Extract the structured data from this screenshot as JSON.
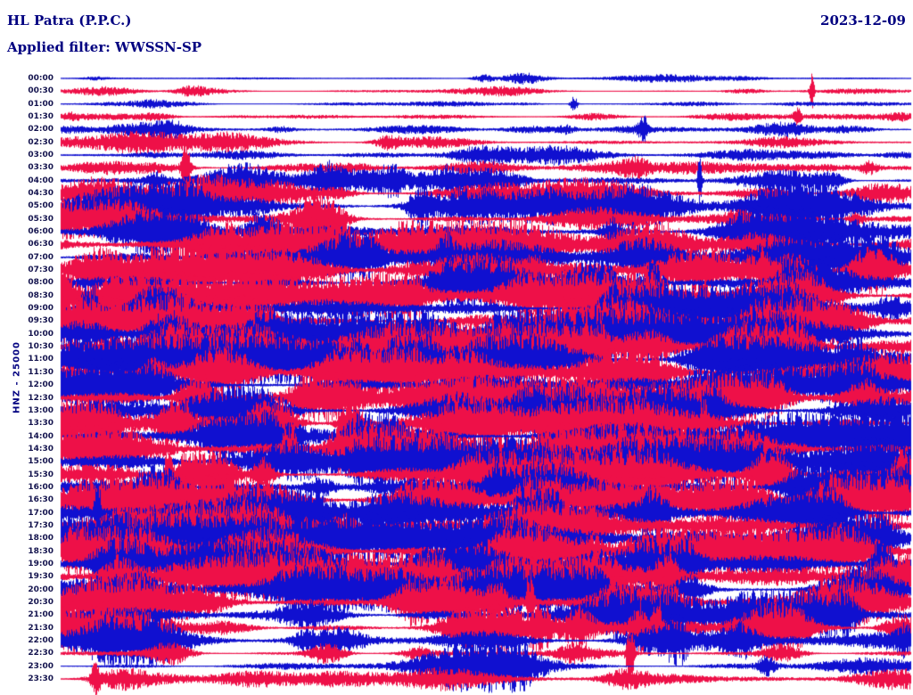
{
  "header": {
    "station": "HL Patra (P.P.C.)",
    "date": "2023-12-09",
    "filter": "Applied filter: WWSSN-SP"
  },
  "chart_data": {
    "type": "line",
    "subtype": "helicorder-seismogram",
    "title": "HL Patra (P.P.C.)",
    "date": "2023-12-09",
    "filter": "WWSSN-SP",
    "scale_label": "HNZ - 25000",
    "row_interval_minutes": 30,
    "x_range_minutes": [
      0,
      30
    ],
    "legend": "alternating blue/red traces per 30-minute row",
    "colors": {
      "blue": "#1010d0",
      "red": "#ee1048"
    },
    "rows": [
      {
        "label": "00:00",
        "color": "blue",
        "amplitude": 0.09
      },
      {
        "label": "00:30",
        "color": "red",
        "amplitude": 0.11
      },
      {
        "label": "01:00",
        "color": "blue",
        "amplitude": 0.06
      },
      {
        "label": "01:30",
        "color": "red",
        "amplitude": 0.09
      },
      {
        "label": "02:00",
        "color": "blue",
        "amplitude": 0.13
      },
      {
        "label": "02:30",
        "color": "red",
        "amplitude": 0.15
      },
      {
        "label": "03:00",
        "color": "blue",
        "amplitude": 0.1
      },
      {
        "label": "03:30",
        "color": "red",
        "amplitude": 0.2
      },
      {
        "label": "04:00",
        "color": "blue",
        "amplitude": 0.28
      },
      {
        "label": "04:30",
        "color": "red",
        "amplitude": 0.33
      },
      {
        "label": "05:00",
        "color": "blue",
        "amplitude": 0.45
      },
      {
        "label": "05:30",
        "color": "red",
        "amplitude": 0.55
      },
      {
        "label": "06:00",
        "color": "blue",
        "amplitude": 0.6
      },
      {
        "label": "06:30",
        "color": "red",
        "amplitude": 0.62
      },
      {
        "label": "07:00",
        "color": "blue",
        "amplitude": 0.66
      },
      {
        "label": "07:30",
        "color": "red",
        "amplitude": 0.68
      },
      {
        "label": "08:00",
        "color": "blue",
        "amplitude": 0.72
      },
      {
        "label": "08:30",
        "color": "red",
        "amplitude": 0.72
      },
      {
        "label": "09:00",
        "color": "blue",
        "amplitude": 0.76
      },
      {
        "label": "09:30",
        "color": "red",
        "amplitude": 0.78
      },
      {
        "label": "10:00",
        "color": "blue",
        "amplitude": 0.8
      },
      {
        "label": "10:30",
        "color": "red",
        "amplitude": 0.82
      },
      {
        "label": "11:00",
        "color": "blue",
        "amplitude": 0.85
      },
      {
        "label": "11:30",
        "color": "red",
        "amplitude": 0.85
      },
      {
        "label": "12:00",
        "color": "blue",
        "amplitude": 0.85
      },
      {
        "label": "12:30",
        "color": "red",
        "amplitude": 0.85
      },
      {
        "label": "13:00",
        "color": "blue",
        "amplitude": 0.86
      },
      {
        "label": "13:30",
        "color": "red",
        "amplitude": 0.86
      },
      {
        "label": "14:00",
        "color": "blue",
        "amplitude": 0.86
      },
      {
        "label": "14:30",
        "color": "red",
        "amplitude": 0.86
      },
      {
        "label": "15:00",
        "color": "blue",
        "amplitude": 0.86
      },
      {
        "label": "15:30",
        "color": "red",
        "amplitude": 0.85
      },
      {
        "label": "16:00",
        "color": "blue",
        "amplitude": 0.85
      },
      {
        "label": "16:30",
        "color": "red",
        "amplitude": 0.85
      },
      {
        "label": "17:00",
        "color": "blue",
        "amplitude": 0.85
      },
      {
        "label": "17:30",
        "color": "red",
        "amplitude": 0.85
      },
      {
        "label": "18:00",
        "color": "blue",
        "amplitude": 0.84
      },
      {
        "label": "18:30",
        "color": "red",
        "amplitude": 0.84
      },
      {
        "label": "19:00",
        "color": "blue",
        "amplitude": 0.8
      },
      {
        "label": "19:30",
        "color": "red",
        "amplitude": 0.8
      },
      {
        "label": "20:00",
        "color": "blue",
        "amplitude": 0.76
      },
      {
        "label": "20:30",
        "color": "red",
        "amplitude": 0.72
      },
      {
        "label": "21:00",
        "color": "blue",
        "amplitude": 0.65
      },
      {
        "label": "21:30",
        "color": "red",
        "amplitude": 0.5
      },
      {
        "label": "22:00",
        "color": "blue",
        "amplitude": 0.4
      },
      {
        "label": "22:30",
        "color": "red",
        "amplitude": 0.28
      },
      {
        "label": "23:00",
        "color": "blue",
        "amplitude": 0.34
      },
      {
        "label": "23:30",
        "color": "red",
        "amplitude": 0.22
      }
    ]
  }
}
